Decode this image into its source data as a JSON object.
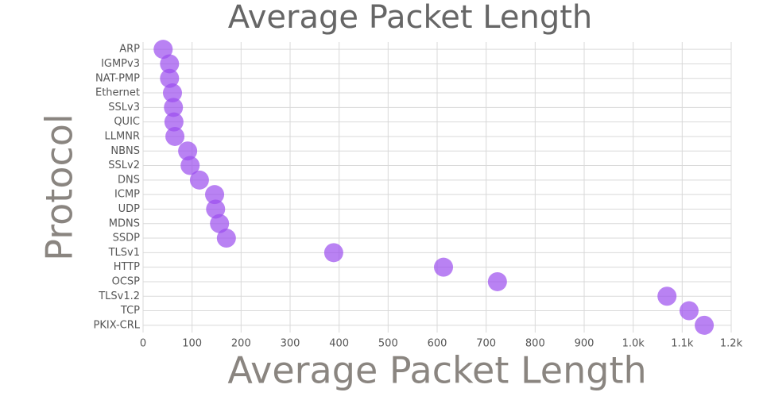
{
  "chart_data": {
    "type": "scatter",
    "title": "Average Packet Length",
    "x_label": "Average Packet Length",
    "y_label": "Protocol",
    "categories": [
      "ARP",
      "IGMPv3",
      "NAT-PMP",
      "Ethernet",
      "SSLv3",
      "QUIC",
      "LLMNR",
      "NBNS",
      "SSLv2",
      "DNS",
      "ICMP",
      "UDP",
      "MDNS",
      "SSDP",
      "TLSv1",
      "HTTP",
      "OCSP",
      "TLSv1.2",
      "TCP",
      "PKIX-CRL"
    ],
    "values": [
      41,
      54,
      54,
      60,
      62,
      63,
      65,
      91,
      96,
      115,
      146,
      148,
      156,
      170,
      389,
      613,
      723,
      1069,
      1114,
      1145
    ],
    "color": "#9b4dee",
    "xlim": [
      0,
      1200
    ],
    "xticks": [
      0,
      100,
      200,
      300,
      400,
      500,
      600,
      700,
      800,
      900,
      {
        "value": 1000,
        "label": "1.0k"
      },
      {
        "value": 1100,
        "label": "1.1k"
      },
      {
        "value": 1200,
        "label": "1.2k"
      }
    ],
    "grid": true
  }
}
